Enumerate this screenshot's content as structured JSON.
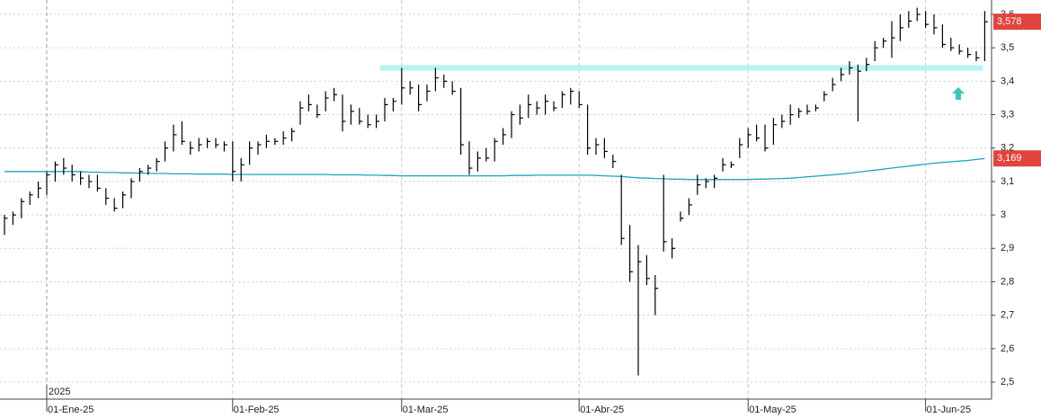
{
  "chart_data": {
    "type": "ohlc",
    "categories": [
      null,
      null,
      null,
      null,
      null,
      "01-Ene-25",
      null,
      null,
      null,
      null,
      null,
      null,
      null,
      null,
      null,
      null,
      null,
      null,
      null,
      null,
      null,
      null,
      null,
      null,
      null,
      null,
      null,
      "01-Feb-25",
      null,
      null,
      null,
      null,
      null,
      null,
      null,
      null,
      null,
      null,
      null,
      null,
      null,
      null,
      null,
      null,
      null,
      null,
      null,
      "01-Mar-25",
      null,
      null,
      null,
      null,
      null,
      null,
      null,
      null,
      null,
      null,
      null,
      null,
      null,
      null,
      null,
      null,
      null,
      null,
      null,
      null,
      "01-Abr-25",
      null,
      null,
      null,
      null,
      null,
      null,
      null,
      null,
      null,
      null,
      null,
      null,
      null,
      null,
      null,
      null,
      null,
      null,
      null,
      "01-May-25",
      null,
      null,
      null,
      null,
      null,
      null,
      null,
      null,
      null,
      null,
      null,
      null,
      null,
      null,
      null,
      null,
      null,
      null,
      null,
      null,
      "01-Jun-25",
      null,
      null,
      null,
      null,
      null,
      null,
      null
    ],
    "year_label": "2025",
    "high": [
      3.0,
      3.01,
      3.05,
      3.07,
      3.1,
      3.13,
      3.16,
      3.17,
      3.15,
      3.13,
      3.12,
      3.12,
      3.08,
      3.05,
      3.07,
      3.11,
      3.14,
      3.15,
      3.17,
      3.22,
      3.27,
      3.28,
      3.22,
      3.23,
      3.23,
      3.23,
      3.22,
      3.22,
      3.17,
      3.22,
      3.22,
      3.24,
      3.23,
      3.25,
      3.26,
      3.34,
      3.36,
      3.33,
      3.37,
      3.38,
      3.36,
      3.33,
      3.32,
      3.3,
      3.3,
      3.35,
      3.35,
      3.44,
      3.4,
      3.39,
      3.39,
      3.44,
      3.42,
      3.4,
      3.38,
      3.22,
      3.19,
      3.2,
      3.23,
      3.26,
      3.31,
      3.33,
      3.36,
      3.34,
      3.36,
      3.34,
      3.37,
      3.38,
      3.37,
      3.33,
      3.23,
      3.23,
      3.18,
      3.12,
      2.97,
      2.91,
      2.88,
      2.82,
      3.12,
      2.93,
      3.01,
      3.05,
      3.12,
      3.11,
      3.12,
      3.17,
      3.16,
      3.23,
      3.26,
      3.27,
      3.27,
      3.29,
      3.3,
      3.33,
      3.32,
      3.33,
      3.33,
      3.37,
      3.41,
      3.44,
      3.46,
      3.45,
      3.47,
      3.52,
      3.53,
      3.58,
      3.6,
      3.61,
      3.62,
      3.61,
      3.6,
      3.57,
      3.53,
      3.51,
      3.5,
      3.49,
      3.61
    ],
    "low": [
      2.94,
      2.97,
      2.99,
      3.03,
      3.05,
      3.06,
      3.1,
      3.12,
      3.1,
      3.09,
      3.08,
      3.07,
      3.03,
      3.01,
      3.02,
      3.05,
      3.1,
      3.12,
      3.13,
      3.16,
      3.19,
      3.21,
      3.18,
      3.19,
      3.2,
      3.2,
      3.19,
      3.1,
      3.1,
      3.15,
      3.18,
      3.2,
      3.21,
      3.21,
      3.22,
      3.27,
      3.31,
      3.29,
      3.31,
      3.34,
      3.25,
      3.27,
      3.27,
      3.26,
      3.26,
      3.28,
      3.31,
      3.33,
      3.36,
      3.31,
      3.34,
      3.37,
      3.38,
      3.36,
      3.18,
      3.12,
      3.13,
      3.16,
      3.16,
      3.21,
      3.23,
      3.27,
      3.29,
      3.3,
      3.3,
      3.31,
      3.32,
      3.33,
      3.32,
      3.18,
      3.18,
      3.17,
      3.14,
      2.91,
      2.8,
      2.52,
      2.79,
      2.7,
      2.89,
      2.87,
      2.98,
      3.0,
      3.06,
      3.08,
      3.08,
      3.13,
      3.14,
      3.17,
      3.2,
      3.22,
      3.19,
      3.21,
      3.26,
      3.27,
      3.29,
      3.3,
      3.31,
      3.34,
      3.37,
      3.4,
      3.42,
      3.28,
      3.43,
      3.46,
      3.5,
      3.47,
      3.52,
      3.56,
      3.58,
      3.56,
      3.54,
      3.5,
      3.49,
      3.48,
      3.47,
      3.46,
      3.46
    ],
    "close": [
      2.99,
      3.0,
      3.04,
      3.06,
      3.08,
      3.12,
      3.15,
      3.14,
      3.12,
      3.11,
      3.1,
      3.08,
      3.05,
      3.02,
      3.06,
      3.1,
      3.13,
      3.14,
      3.16,
      3.2,
      3.24,
      3.22,
      3.2,
      3.21,
      3.22,
      3.21,
      3.21,
      3.13,
      3.15,
      3.2,
      3.21,
      3.22,
      3.22,
      3.23,
      3.25,
      3.32,
      3.33,
      3.3,
      3.35,
      3.36,
      3.28,
      3.31,
      3.28,
      3.27,
      3.28,
      3.33,
      3.34,
      3.38,
      3.38,
      3.33,
      3.37,
      3.41,
      3.4,
      3.37,
      3.21,
      3.14,
      3.17,
      3.17,
      3.22,
      3.24,
      3.3,
      3.29,
      3.33,
      3.32,
      3.34,
      3.32,
      3.36,
      3.37,
      3.33,
      3.2,
      3.21,
      3.19,
      3.16,
      2.93,
      2.83,
      2.86,
      2.81,
      2.78,
      2.92,
      2.9,
      2.99,
      3.03,
      3.09,
      3.1,
      3.11,
      3.15,
      3.15,
      3.21,
      3.24,
      3.23,
      3.2,
      3.27,
      3.28,
      3.3,
      3.31,
      3.31,
      3.32,
      3.36,
      3.39,
      3.42,
      3.44,
      3.43,
      3.45,
      3.5,
      3.52,
      3.53,
      3.56,
      3.58,
      3.6,
      3.57,
      3.56,
      3.51,
      3.5,
      3.49,
      3.48,
      3.47,
      3.578
    ],
    "close_label": "3,578",
    "average": [
      3.13,
      3.13,
      3.13,
      3.13,
      3.13,
      3.13,
      3.13,
      3.13,
      3.13,
      3.13,
      3.128,
      3.128,
      3.127,
      3.127,
      3.126,
      3.126,
      3.125,
      3.125,
      3.124,
      3.124,
      3.123,
      3.123,
      3.123,
      3.122,
      3.122,
      3.122,
      3.122,
      3.121,
      3.121,
      3.121,
      3.121,
      3.121,
      3.121,
      3.121,
      3.121,
      3.121,
      3.121,
      3.121,
      3.121,
      3.12,
      3.12,
      3.12,
      3.12,
      3.119,
      3.119,
      3.118,
      3.118,
      3.117,
      3.117,
      3.117,
      3.117,
      3.117,
      3.117,
      3.117,
      3.117,
      3.117,
      3.117,
      3.117,
      3.117,
      3.117,
      3.118,
      3.118,
      3.118,
      3.119,
      3.119,
      3.119,
      3.119,
      3.119,
      3.119,
      3.119,
      3.118,
      3.117,
      3.116,
      3.115,
      3.113,
      3.111,
      3.11,
      3.109,
      3.108,
      3.107,
      3.107,
      3.106,
      3.106,
      3.106,
      3.106,
      3.106,
      3.106,
      3.106,
      3.106,
      3.107,
      3.107,
      3.108,
      3.109,
      3.11,
      3.112,
      3.114,
      3.116,
      3.118,
      3.12,
      3.122,
      3.125,
      3.128,
      3.131,
      3.134,
      3.137,
      3.14,
      3.143,
      3.146,
      3.149,
      3.152,
      3.155,
      3.157,
      3.159,
      3.161,
      3.163,
      3.166,
      3.169
    ],
    "average_label": "3,169",
    "level": 3.44,
    "color": "#000000",
    "average_color": "#1fa3c4",
    "level_color": "#b8f2f2",
    "label_color": "#e0443c",
    "ylim": [
      2.449,
      3.643
    ],
    "yticks": [
      {
        "value": 2.5,
        "label": "2,5"
      },
      {
        "value": 2.6,
        "label": "2,6"
      },
      {
        "value": 2.7,
        "label": "2,7"
      },
      {
        "value": 2.8,
        "label": "2,8"
      },
      {
        "value": 2.9,
        "label": "2,9"
      },
      3,
      {
        "value": 3.1,
        "label": "3,1"
      },
      {
        "value": 3.2,
        "label": "3,2"
      },
      {
        "value": 3.3,
        "label": "3,3"
      },
      {
        "value": 3.4,
        "label": "3,4"
      },
      {
        "value": 3.5,
        "label": "3,5"
      },
      {
        "value": 3.6,
        "label": "3,6"
      }
    ],
    "grid": true
  }
}
